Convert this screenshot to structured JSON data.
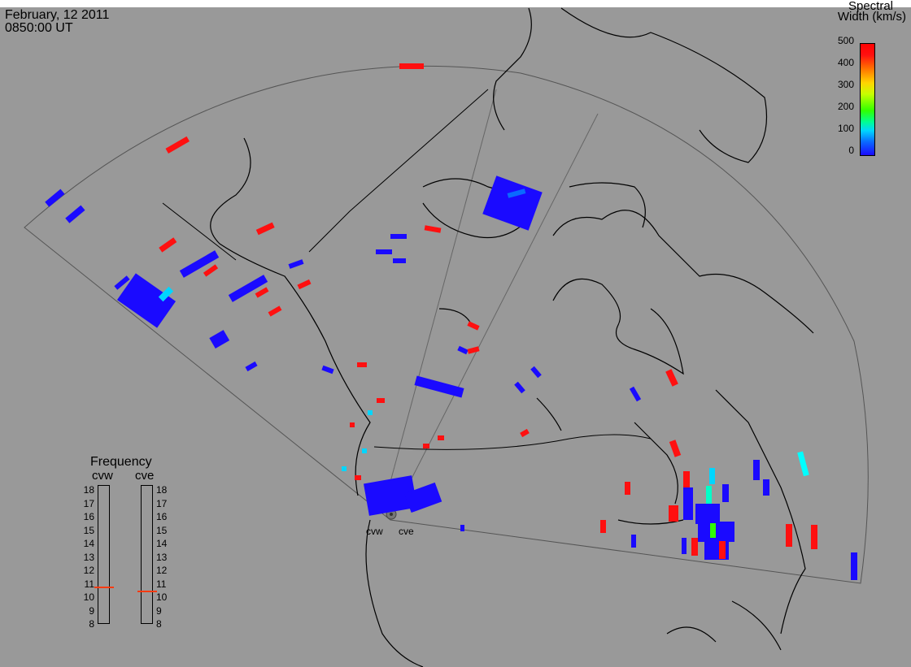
{
  "header": {
    "date": "February, 12 2011",
    "time": "0850:00 UT"
  },
  "legend": {
    "title_line1": "Spectral",
    "title_line2": "Width (km/s)",
    "ticks": [
      "500",
      "400",
      "300",
      "200",
      "100",
      "0"
    ],
    "colors": {
      "low": "#1a0aff",
      "high": "#ff0000"
    }
  },
  "frequency_panel": {
    "title": "Frequency",
    "stations": [
      "cvw",
      "cve"
    ],
    "scale": [
      "18",
      "17",
      "16",
      "15",
      "14",
      "13",
      "12",
      "11",
      "10",
      "9",
      "8"
    ],
    "cvw_value": 10.8,
    "cve_value": 10.5,
    "marker_color": "#ff3a10"
  },
  "sites": {
    "west": "cvw",
    "east": "cve"
  }
}
